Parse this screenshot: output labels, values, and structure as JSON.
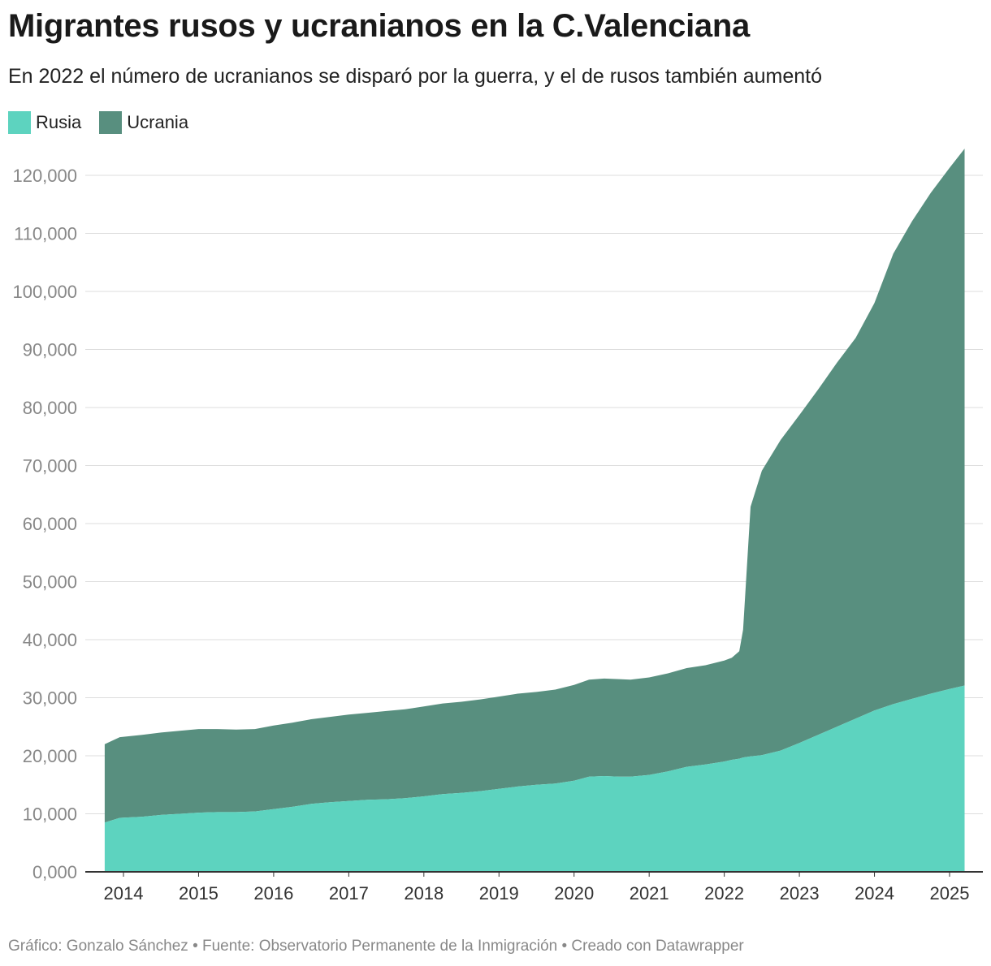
{
  "title": "Migrantes rusos y ucranianos en la C.Valenciana",
  "subtitle": "En 2022 el número de ucranianos se disparó por la guerra, y el de rusos también aumentó",
  "footer": "Gráfico: Gonzalo Sánchez • Fuente: Observatorio Permanente de la Inmigración  • Creado con Datawrapper",
  "colors": {
    "rusia": "#5dd3bf",
    "ucrania": "#588f7f",
    "grid": "#dddddd",
    "axis": "#333333",
    "tick": "#888888",
    "xtick": "#333333"
  },
  "chart_data": {
    "type": "area",
    "stacked": true,
    "grid": true,
    "legend_position": "top-left",
    "ylim": [
      0,
      125000
    ],
    "xlim": [
      2013.5,
      2025.5
    ],
    "y_ticks": [
      0,
      10000,
      20000,
      30000,
      40000,
      50000,
      60000,
      70000,
      80000,
      90000,
      100000,
      110000,
      120000
    ],
    "y_tick_labels": [
      "0,000",
      "10,000",
      "20,000",
      "30,000",
      "40,000",
      "50,000",
      "60,000",
      "70,000",
      "80,000",
      "90,000",
      "100,000",
      "110,000",
      "120,000"
    ],
    "x_ticks": [
      2014,
      2015,
      2016,
      2017,
      2018,
      2019,
      2020,
      2021,
      2022,
      2023,
      2024,
      2025
    ],
    "x_tick_labels": [
      "2014",
      "2015",
      "2016",
      "2017",
      "2018",
      "2019",
      "2020",
      "2021",
      "2022",
      "2023",
      "2024",
      "2025"
    ],
    "x": [
      2013.75,
      2013.95,
      2014.25,
      2014.5,
      2014.75,
      2015.0,
      2015.25,
      2015.5,
      2015.75,
      2016.0,
      2016.25,
      2016.5,
      2016.75,
      2017.0,
      2017.25,
      2017.5,
      2017.75,
      2018.0,
      2018.25,
      2018.5,
      2018.75,
      2019.0,
      2019.25,
      2019.5,
      2019.75,
      2020.0,
      2020.2,
      2020.4,
      2020.6,
      2020.75,
      2021.0,
      2021.25,
      2021.5,
      2021.75,
      2022.0,
      2022.1,
      2022.2,
      2022.25,
      2022.35,
      2022.5,
      2022.75,
      2023.0,
      2023.25,
      2023.5,
      2023.75,
      2024.0,
      2024.25,
      2024.5,
      2024.75,
      2025.0,
      2025.2
    ],
    "series": [
      {
        "name": "Rusia",
        "values": [
          8500,
          9300,
          9500,
          9800,
          10000,
          10200,
          10300,
          10300,
          10400,
          10800,
          11200,
          11700,
          12000,
          12200,
          12400,
          12500,
          12700,
          13000,
          13400,
          13600,
          13900,
          14300,
          14700,
          15000,
          15200,
          15700,
          16400,
          16500,
          16400,
          16400,
          16700,
          17300,
          18100,
          18500,
          19000,
          19300,
          19500,
          19700,
          19900,
          20100,
          20900,
          22200,
          23600,
          25000,
          26400,
          27800,
          28900,
          29800,
          30700,
          31500,
          32100
        ]
      },
      {
        "name": "Ucrania",
        "values": [
          13500,
          13900,
          14100,
          14200,
          14300,
          14400,
          14300,
          14200,
          14200,
          14400,
          14500,
          14600,
          14700,
          14900,
          15000,
          15200,
          15300,
          15500,
          15600,
          15700,
          15800,
          15900,
          16000,
          16000,
          16200,
          16500,
          16700,
          16800,
          16800,
          16700,
          16800,
          16900,
          17000,
          17100,
          17400,
          17600,
          18500,
          22000,
          43000,
          49000,
          53500,
          56500,
          59500,
          62700,
          65600,
          70200,
          77600,
          82300,
          86300,
          89800,
          92500
        ]
      }
    ]
  }
}
